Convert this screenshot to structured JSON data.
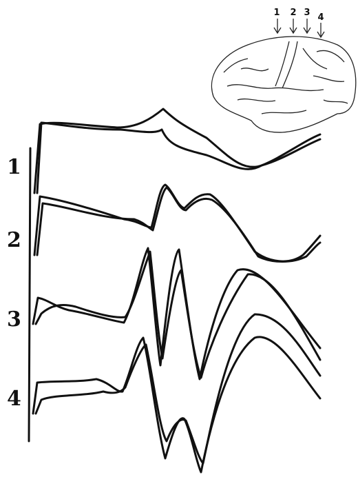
{
  "trace_labels": [
    "1",
    "2",
    "3",
    "4"
  ],
  "electrode_labels": [
    "1",
    "2",
    "3",
    "4"
  ]
}
